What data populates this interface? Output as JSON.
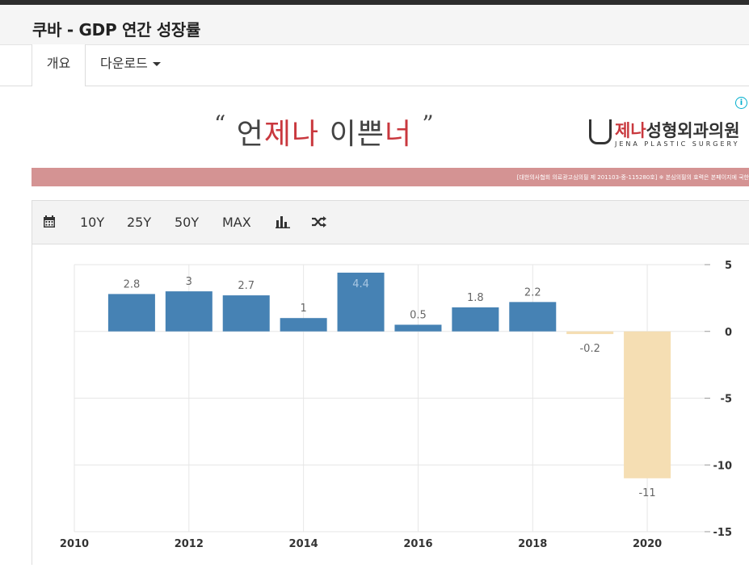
{
  "page": {
    "title": "쿠바 - GDP 연간 성장률"
  },
  "tabs": {
    "overview": "개요",
    "download": "다운로드"
  },
  "ad": {
    "slogan": {
      "open_quote": "“",
      "part1": "언",
      "part2": "제나",
      "part3": " 이쁜",
      "part4": "너",
      "close_quote": "”"
    },
    "logo": {
      "name_red": "제나",
      "name_rest": "성형외과의원",
      "sub": "JENA PLASTIC SURGERY"
    },
    "disclaimer": "[대한의사협회 의료광고심의필 제 201103-중-115280호] ※ 본심의필의 효력은 본페이지에 국한",
    "info_icon_glyph": "i"
  },
  "toolbar": {
    "calendar_icon": "calendar-icon",
    "ranges": [
      "10Y",
      "25Y",
      "50Y",
      "MAX"
    ],
    "bar_chart_icon": "bar-chart-icon",
    "shuffle_icon": "shuffle-icon"
  },
  "chart_data": {
    "type": "bar",
    "title": "",
    "xlabel": "",
    "ylabel": "",
    "x": [
      2011,
      2012,
      2013,
      2014,
      2015,
      2016,
      2017,
      2018,
      2019,
      2020
    ],
    "values": [
      2.8,
      3,
      2.7,
      1,
      4.4,
      0.5,
      1.8,
      2.2,
      -0.2,
      -11
    ],
    "value_labels": [
      "2.8",
      "3",
      "2.7",
      "1",
      "4.4",
      "0.5",
      "1.8",
      "2.2",
      "-0.2",
      "-11"
    ],
    "colors": {
      "positive": "#4682b4",
      "negative": "#f5deb3"
    },
    "x_ticks": [
      2010,
      2012,
      2014,
      2016,
      2018,
      2020
    ],
    "y_ticks": [
      5,
      0,
      -5,
      -10,
      -15
    ],
    "xlim": [
      2010,
      2021
    ],
    "ylim": [
      -15,
      5
    ],
    "y_axis_position": "right",
    "grid": true
  }
}
